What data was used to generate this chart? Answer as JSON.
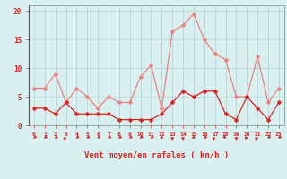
{
  "x": [
    0,
    1,
    2,
    3,
    4,
    5,
    6,
    7,
    8,
    9,
    10,
    11,
    12,
    13,
    14,
    15,
    16,
    17,
    18,
    19,
    20,
    21,
    22,
    23
  ],
  "y_mean": [
    3,
    3,
    2,
    4,
    2,
    2,
    2,
    2,
    1,
    1,
    1,
    1,
    2,
    4,
    6,
    5,
    6,
    6,
    2,
    1,
    5,
    3,
    1,
    4
  ],
  "y_gust": [
    6.5,
    6.5,
    9,
    4,
    6.5,
    5,
    3,
    5,
    4,
    4,
    8.5,
    10.5,
    3,
    16.5,
    17.5,
    19.5,
    15,
    12.5,
    11.5,
    5,
    5,
    12,
    4,
    6.5
  ],
  "line_color_mean": "#dd2222",
  "line_color_gust": "#f08080",
  "bg_color": "#d8f0f0",
  "grid_color": "#b8d0d0",
  "axis_color": "#dd2222",
  "xlabel": "Vent moyen/en rafales ( kn/h )",
  "ylim": [
    0,
    21
  ],
  "xlim": [
    -0.5,
    23.5
  ],
  "yticks": [
    0,
    5,
    10,
    15,
    20
  ],
  "xticks": [
    0,
    1,
    2,
    3,
    4,
    5,
    6,
    7,
    8,
    9,
    10,
    11,
    12,
    13,
    14,
    15,
    16,
    17,
    18,
    19,
    20,
    21,
    22,
    23
  ],
  "arrow_angles": [
    225,
    225,
    225,
    45,
    225,
    225,
    225,
    225,
    225,
    225,
    225,
    225,
    90,
    270,
    270,
    90,
    225,
    45,
    315,
    270,
    0,
    45,
    225,
    225
  ]
}
